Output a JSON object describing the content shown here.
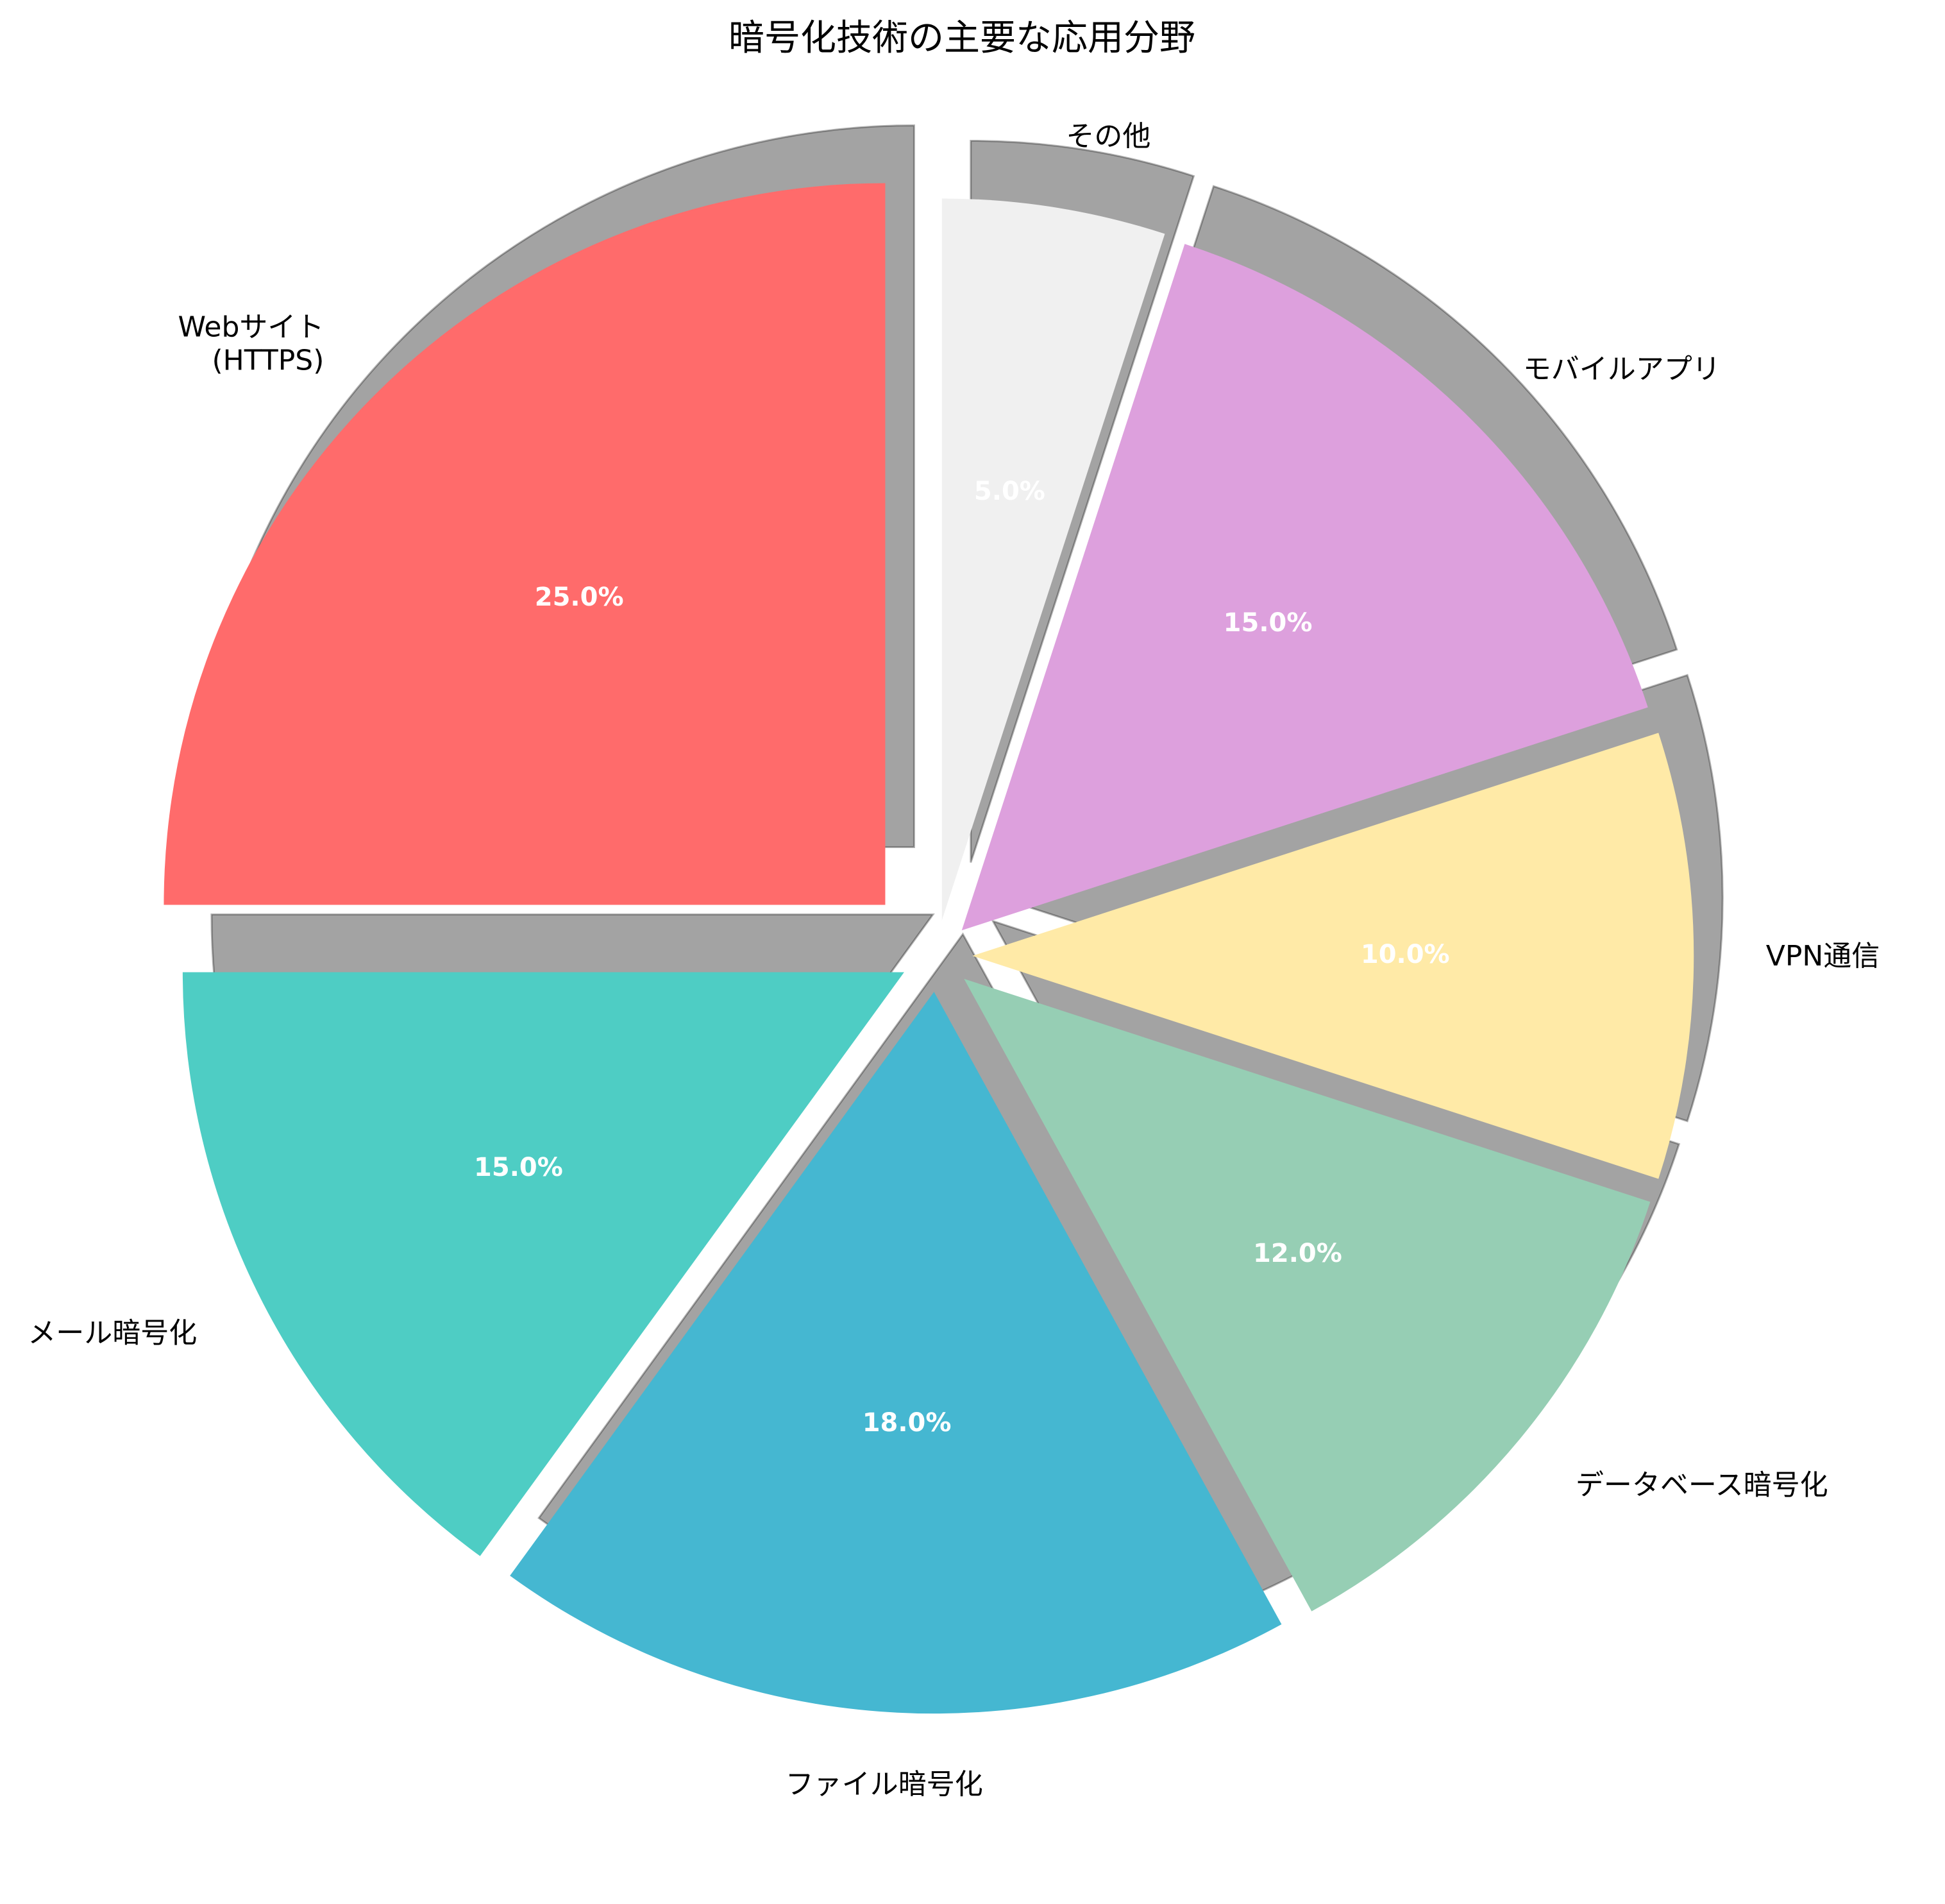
{
  "chart_data": {
    "type": "pie",
    "title": "暗号化技術の主要な応用分野",
    "categories": [
      "Webサイト\n(HTTPS)",
      "メール暗号化",
      "ファイル暗号化",
      "データベース暗号化",
      "VPN通信",
      "モバイルアプリ",
      "その他"
    ],
    "values": [
      25,
      15,
      18,
      12,
      10,
      15,
      5
    ],
    "value_labels": [
      "25.0%",
      "15.0%",
      "18.0%",
      "12.0%",
      "10.0%",
      "15.0%",
      "5.0%"
    ],
    "colors": [
      "#FF6B6B",
      "#4ECDC4",
      "#45B7D1",
      "#96CEB4",
      "#FFEAA7",
      "#DDA0DD",
      "#F0F0F0"
    ],
    "explode": [
      0.1,
      0.05,
      0.05,
      0.05,
      0.05,
      0.05,
      0.05
    ],
    "start_angle": 90,
    "direction": "counterclockwise",
    "shadow": true,
    "legend": "none"
  }
}
